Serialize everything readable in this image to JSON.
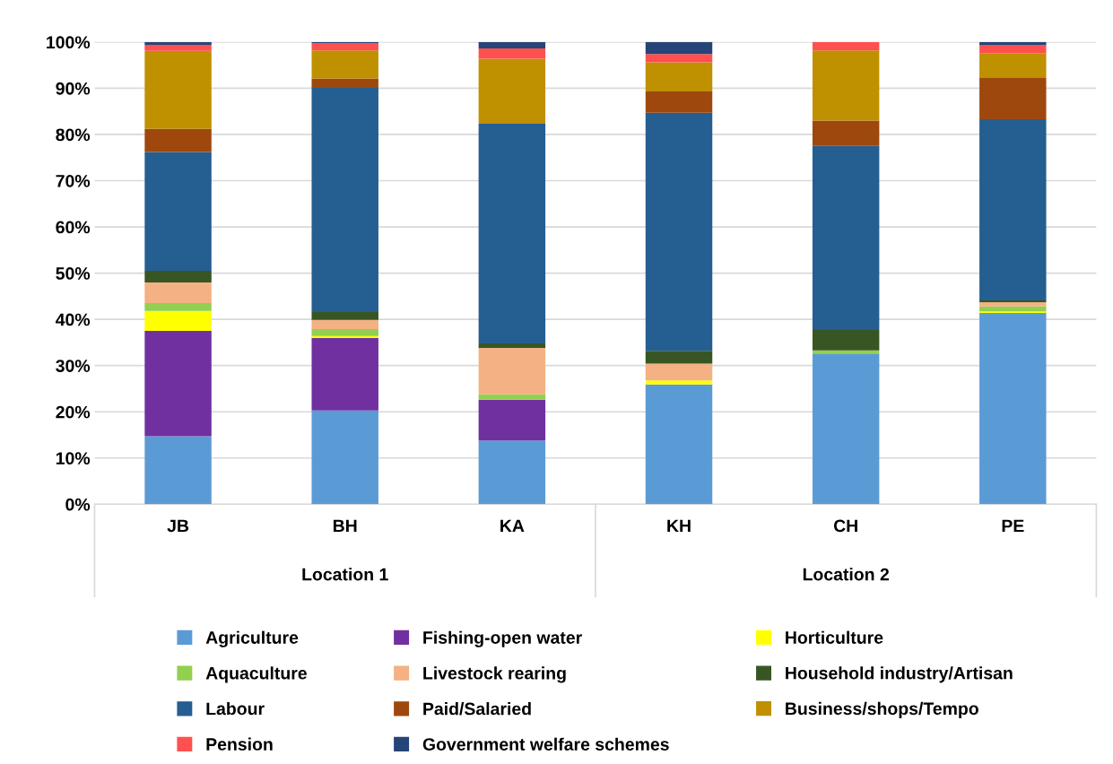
{
  "chart_data": {
    "type": "bar",
    "stacked": true,
    "categories": [
      "JB",
      "BH",
      "KA",
      "KH",
      "CH",
      "PE"
    ],
    "annotations": [
      "Location 1",
      "Location 2"
    ],
    "ylim": [
      0,
      100
    ],
    "yticks": [
      {
        "value": 0,
        "label": "0%"
      },
      {
        "value": 10,
        "label": "10%"
      },
      {
        "value": 20,
        "label": "20%"
      },
      {
        "value": 30,
        "label": "30%"
      },
      {
        "value": 40,
        "label": "40%"
      },
      {
        "value": 50,
        "label": "50%"
      },
      {
        "value": 60,
        "label": "60%"
      },
      {
        "value": 70,
        "label": "70%"
      },
      {
        "value": 80,
        "label": "80%"
      },
      {
        "value": 90,
        "label": "90%"
      },
      {
        "value": 100,
        "label": "100%"
      }
    ],
    "grid": "y",
    "legend": "bottom",
    "series": [
      {
        "name": "Agriculture",
        "color": "#5b9bd5",
        "values": [
          14.7,
          20.3,
          13.8,
          25.9,
          32.6,
          41.4
        ]
      },
      {
        "name": "Fishing-open water",
        "color": "#7030a0",
        "values": [
          22.8,
          15.7,
          8.8,
          0,
          0,
          0
        ]
      },
      {
        "name": "Horticulture",
        "color": "#ffff00",
        "values": [
          4.3,
          0.4,
          0,
          0.9,
          0,
          0.3
        ]
      },
      {
        "name": "Aquaculture",
        "color": "#92d050",
        "values": [
          1.7,
          1.5,
          1.2,
          0,
          0.7,
          1.1
        ]
      },
      {
        "name": "Livestock rearing",
        "color": "#f4b183",
        "values": [
          4.5,
          2.0,
          10.0,
          3.6,
          0,
          0.9
        ]
      },
      {
        "name": "Household industry/Artisan",
        "color": "#375623",
        "values": [
          2.5,
          1.7,
          1.0,
          2.8,
          4.4,
          0.4
        ]
      },
      {
        "name": "Labour",
        "color": "#255e91",
        "values": [
          25.7,
          48.5,
          47.5,
          51.5,
          39.8,
          39.2
        ]
      },
      {
        "name": "Paid/Salaried",
        "color": "#9e480e",
        "values": [
          5.0,
          2.0,
          0,
          4.6,
          5.5,
          8.9
        ]
      },
      {
        "name": "Business/shops/Tempo",
        "color": "#bf9000",
        "values": [
          16.9,
          6.1,
          14.1,
          6.3,
          15.2,
          5.4
        ]
      },
      {
        "name": "Pension",
        "color": "#ff5050",
        "values": [
          1.3,
          1.6,
          2.2,
          1.8,
          1.8,
          1.7
        ]
      },
      {
        "name": "Government welfare schemes",
        "color": "#264478",
        "values": [
          0.6,
          0.2,
          1.4,
          2.6,
          0,
          0.7
        ]
      }
    ]
  }
}
